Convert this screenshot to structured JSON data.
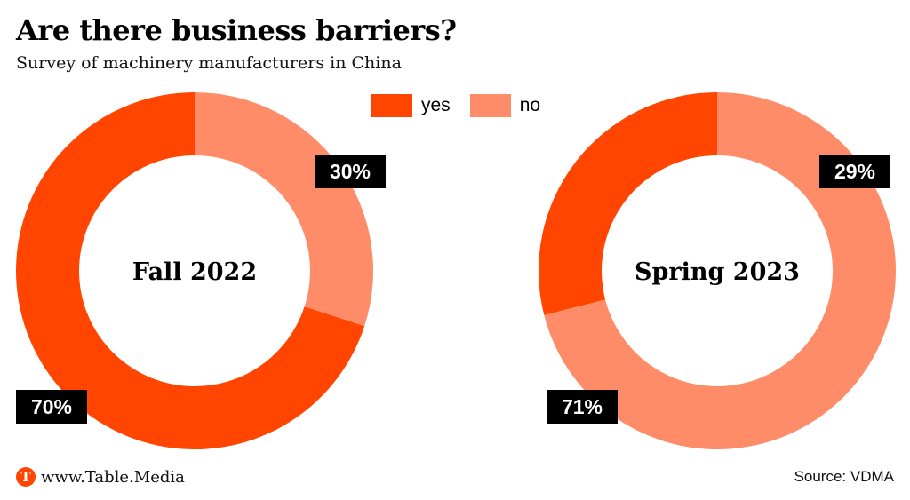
{
  "header": {
    "title": "Are there business barriers?",
    "subtitle": "Survey of machinery manufacturers in China"
  },
  "legend": [
    {
      "label": "yes",
      "color": "#ff4500"
    },
    {
      "label": "no",
      "color": "#ff8c69"
    }
  ],
  "chart_data": [
    {
      "type": "pie",
      "center_label": "Fall 2022",
      "categories": [
        "yes",
        "no"
      ],
      "values": [
        70,
        30
      ],
      "labels": [
        "70%",
        "30%"
      ],
      "colors": [
        "#ff4500",
        "#ff8c69"
      ]
    },
    {
      "type": "pie",
      "center_label": "Spring 2023",
      "categories": [
        "yes",
        "no"
      ],
      "values": [
        29,
        71
      ],
      "labels": [
        "29%",
        "71%"
      ],
      "colors": [
        "#ff4500",
        "#ff8c69"
      ]
    }
  ],
  "footer": {
    "logo_letter": "T",
    "site": "www.Table.Media",
    "source": "Source: VDMA"
  }
}
